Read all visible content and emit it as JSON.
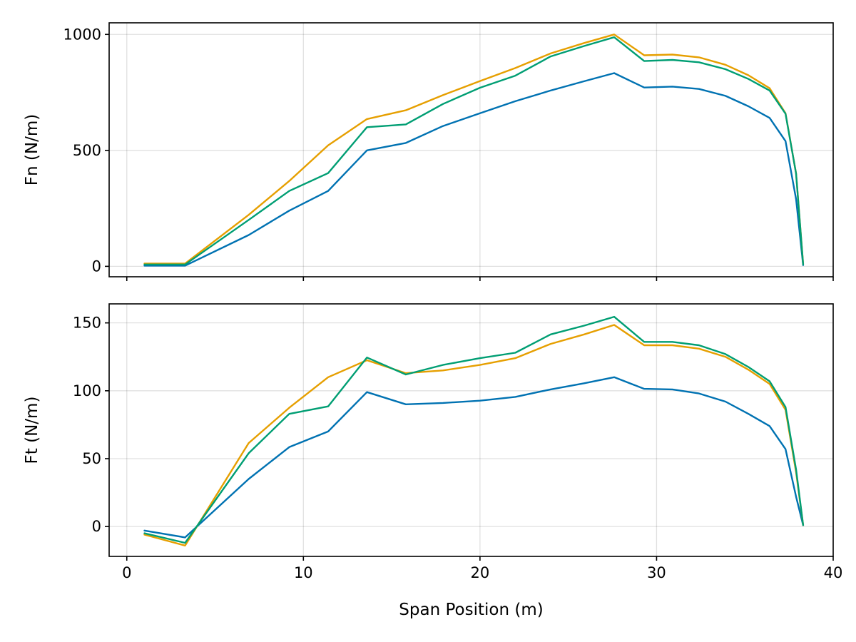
{
  "chart_data": [
    {
      "type": "line",
      "title": "",
      "xlabel": "",
      "ylabel": "Fn (N/m)",
      "xlim": [
        -1,
        40
      ],
      "ylim": [
        -45,
        1050
      ],
      "xticks": [
        0,
        10,
        20,
        30,
        40
      ],
      "yticks": [
        0,
        500,
        1000
      ],
      "show_x_tick_labels": false,
      "grid": true,
      "x": [
        1.0,
        3.3,
        6.9,
        9.2,
        11.4,
        13.6,
        15.8,
        17.9,
        20.0,
        22.0,
        24.0,
        25.9,
        27.6,
        29.3,
        30.9,
        32.4,
        33.9,
        35.2,
        36.4,
        37.3,
        37.9,
        38.3
      ],
      "series": [
        {
          "color": "#0072b2",
          "values": [
            3,
            3,
            135,
            240,
            325,
            500,
            532,
            605,
            660,
            712,
            758,
            798,
            833,
            771,
            775,
            765,
            735,
            690,
            640,
            540,
            290,
            5
          ]
        },
        {
          "color": "#e69f00",
          "values": [
            12,
            12,
            222,
            368,
            522,
            635,
            673,
            738,
            799,
            855,
            918,
            963,
            1000,
            910,
            913,
            901,
            869,
            824,
            768,
            660,
            400,
            10
          ]
        },
        {
          "color": "#009e73",
          "values": [
            8,
            8,
            200,
            325,
            402,
            600,
            612,
            700,
            770,
            822,
            905,
            950,
            988,
            885,
            890,
            880,
            850,
            808,
            758,
            658,
            400,
            8
          ]
        }
      ]
    },
    {
      "type": "line",
      "title": "",
      "xlabel": "Span Position (m)",
      "ylabel": "Ft (N/m)",
      "xlim": [
        -1,
        40
      ],
      "ylim": [
        -22,
        164
      ],
      "xticks": [
        0,
        10,
        20,
        30,
        40
      ],
      "yticks": [
        0,
        50,
        100,
        150
      ],
      "show_x_tick_labels": true,
      "grid": true,
      "x": [
        1.0,
        3.3,
        6.9,
        9.2,
        11.4,
        13.6,
        15.8,
        17.9,
        20.0,
        22.0,
        24.0,
        25.9,
        27.6,
        29.3,
        30.9,
        32.4,
        33.9,
        35.2,
        36.4,
        37.3,
        37.9,
        38.3
      ],
      "series": [
        {
          "color": "#0072b2",
          "values": [
            -3,
            -8,
            35,
            58.5,
            70,
            99,
            90,
            91,
            92.7,
            95.5,
            101,
            105.5,
            110,
            101.4,
            101,
            98,
            92,
            83,
            74,
            57,
            22,
            1
          ]
        },
        {
          "color": "#e69f00",
          "values": [
            -6,
            -14,
            61.5,
            87.5,
            110,
            122.5,
            113,
            115,
            119,
            124,
            134.5,
            141.5,
            148.5,
            133.5,
            133.5,
            131,
            125,
            115.5,
            105,
            86,
            40,
            1
          ]
        },
        {
          "color": "#009e73",
          "values": [
            -5,
            -12,
            54,
            83,
            88.5,
            124.5,
            112,
            119,
            124,
            128,
            141.5,
            148,
            154.5,
            136,
            136,
            133.5,
            127,
            117.5,
            107,
            88,
            42,
            1
          ]
        }
      ]
    }
  ]
}
